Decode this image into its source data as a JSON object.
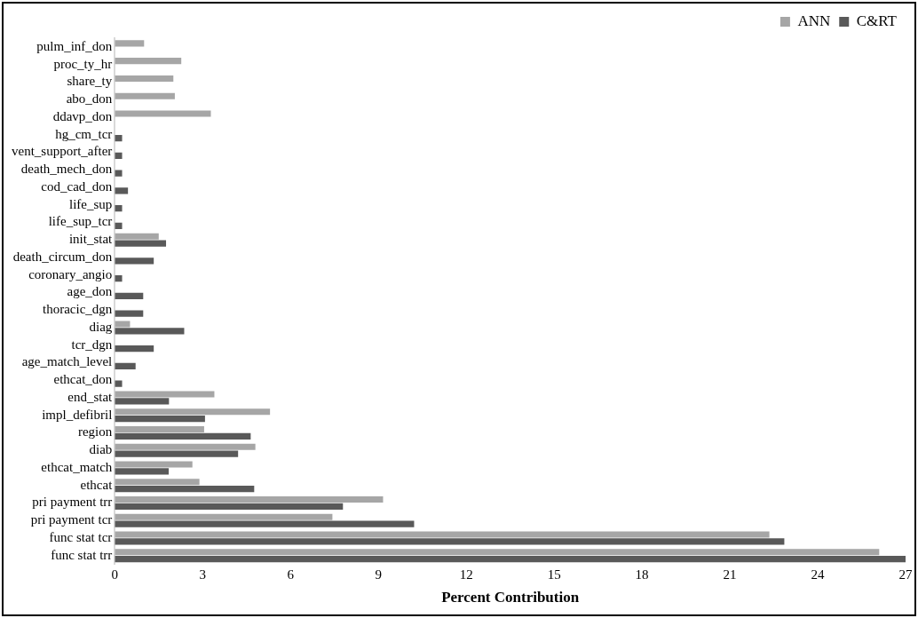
{
  "chart_data": {
    "type": "bar",
    "orientation": "horizontal",
    "xlabel": "Percent Contribution",
    "categories": [
      "pulm_inf_don",
      "proc_ty_hr",
      "share_ty",
      "abo_don",
      "ddavp_don",
      "hg_cm_tcr",
      "vent_support_after",
      "death_mech_don",
      "cod_cad_don",
      "life_sup",
      "life_sup_tcr",
      "init_stat",
      "death_circum_don",
      "coronary_angio",
      "age_don",
      "thoracic_dgn",
      "diag",
      "tcr_dgn",
      "age_match_level",
      "ethcat_don",
      "end_stat",
      "impl_defibril",
      "region",
      "diab",
      "ethcat_match",
      "ethcat",
      "pri payment trr",
      "pri payment tcr",
      "func stat tcr",
      "func stat trr"
    ],
    "series": [
      {
        "name": "ANN",
        "color": "#a6a6a6",
        "values": [
          1.0,
          2.27,
          2.0,
          2.05,
          3.28,
          null,
          null,
          null,
          null,
          null,
          null,
          1.5,
          null,
          null,
          null,
          null,
          0.52,
          null,
          null,
          null,
          3.4,
          5.3,
          3.05,
          4.8,
          2.65,
          2.89,
          9.16,
          7.43,
          22.35,
          26.1
        ]
      },
      {
        "name": "C&RT",
        "color": "#595959",
        "values": [
          null,
          null,
          null,
          null,
          null,
          0.25,
          0.25,
          0.25,
          0.45,
          0.25,
          0.25,
          1.75,
          1.33,
          0.25,
          0.97,
          0.97,
          2.37,
          1.33,
          0.71,
          0.25,
          1.85,
          3.08,
          4.64,
          4.21,
          1.84,
          4.76,
          7.79,
          10.22,
          22.86,
          27.0
        ]
      }
    ],
    "xlim": [
      0,
      27
    ],
    "xticks": [
      0,
      3,
      6,
      9,
      12,
      15,
      18,
      21,
      24,
      27
    ],
    "grid": false,
    "legend": "top right"
  }
}
